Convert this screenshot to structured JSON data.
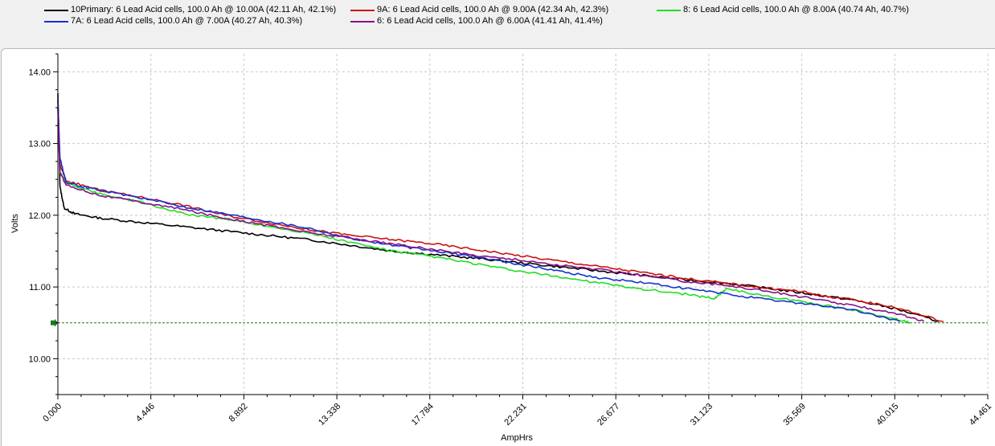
{
  "chart_data": {
    "type": "line",
    "xlabel": "AmpHrs",
    "ylabel": "Volts",
    "xlim": [
      0.0,
      44.461
    ],
    "ylim": [
      9.5,
      14.25
    ],
    "x_ticks": [
      "0.000",
      "4.446",
      "8.892",
      "13.338",
      "17.784",
      "22.231",
      "26.677",
      "31.123",
      "35.569",
      "40.015",
      "44.461"
    ],
    "y_ticks": [
      "10.00",
      "11.00",
      "12.00",
      "13.00",
      "14.00"
    ],
    "threshold": {
      "value": 10.5,
      "color": "#1a7a1a"
    },
    "grid": true,
    "legend_position": "top",
    "series": [
      {
        "name": "10Primary: 6 Lead Acid cells, 100.0 Ah @ 10.00A (42.11 Ah, 42.1%)",
        "color": "#000000",
        "points": [
          [
            0,
            13.7
          ],
          [
            0.1,
            12.4
          ],
          [
            0.3,
            12.1
          ],
          [
            0.8,
            12.02
          ],
          [
            2,
            11.96
          ],
          [
            4,
            11.9
          ],
          [
            6,
            11.84
          ],
          [
            8,
            11.78
          ],
          [
            10,
            11.72
          ],
          [
            12,
            11.66
          ],
          [
            14,
            11.58
          ],
          [
            16,
            11.5
          ],
          [
            18,
            11.45
          ],
          [
            20,
            11.4
          ],
          [
            22,
            11.34
          ],
          [
            24,
            11.28
          ],
          [
            26,
            11.22
          ],
          [
            28,
            11.16
          ],
          [
            30,
            11.1
          ],
          [
            32,
            11.05
          ],
          [
            34,
            10.98
          ],
          [
            36,
            10.9
          ],
          [
            38,
            10.82
          ],
          [
            40,
            10.7
          ],
          [
            42.11,
            10.52
          ]
        ]
      },
      {
        "name": "9A: 6 Lead Acid cells, 100.0 Ah @ 9.00A (42.34 Ah, 42.3%)",
        "color": "#cc1111",
        "points": [
          [
            0,
            13.6
          ],
          [
            0.1,
            12.7
          ],
          [
            0.4,
            12.48
          ],
          [
            2,
            12.35
          ],
          [
            4,
            12.25
          ],
          [
            6,
            12.14
          ],
          [
            8,
            12.0
          ],
          [
            10,
            11.9
          ],
          [
            12,
            11.8
          ],
          [
            14,
            11.72
          ],
          [
            16,
            11.66
          ],
          [
            18,
            11.6
          ],
          [
            20,
            11.52
          ],
          [
            22,
            11.44
          ],
          [
            24,
            11.36
          ],
          [
            26,
            11.28
          ],
          [
            28,
            11.2
          ],
          [
            30,
            11.12
          ],
          [
            32,
            11.05
          ],
          [
            34,
            10.98
          ],
          [
            35.5,
            10.94
          ],
          [
            36.5,
            10.88
          ],
          [
            38,
            10.82
          ],
          [
            40,
            10.72
          ],
          [
            42.34,
            10.52
          ]
        ]
      },
      {
        "name": "8: 6 Lead Acid cells, 100.0 Ah @ 8.00A (40.74 Ah, 40.7%)",
        "color": "#22dd22",
        "points": [
          [
            0,
            13.5
          ],
          [
            0.1,
            12.6
          ],
          [
            0.4,
            12.45
          ],
          [
            2,
            12.3
          ],
          [
            4,
            12.18
          ],
          [
            6,
            12.02
          ],
          [
            8,
            11.95
          ],
          [
            10,
            11.85
          ],
          [
            12,
            11.75
          ],
          [
            14,
            11.62
          ],
          [
            16,
            11.5
          ],
          [
            18,
            11.42
          ],
          [
            20,
            11.32
          ],
          [
            22,
            11.22
          ],
          [
            24,
            11.14
          ],
          [
            26,
            11.05
          ],
          [
            28,
            10.97
          ],
          [
            30,
            10.9
          ],
          [
            31.4,
            10.84
          ],
          [
            32,
            10.98
          ],
          [
            34,
            10.86
          ],
          [
            36,
            10.78
          ],
          [
            38,
            10.68
          ],
          [
            40,
            10.56
          ],
          [
            40.74,
            10.5
          ]
        ]
      },
      {
        "name": "7A: 6 Lead Acid cells, 100.0 Ah @ 7.00A (40.27 Ah, 40.3%)",
        "color": "#1133cc",
        "points": [
          [
            0,
            13.6
          ],
          [
            0.1,
            12.8
          ],
          [
            0.4,
            12.45
          ],
          [
            2,
            12.35
          ],
          [
            4,
            12.24
          ],
          [
            6,
            12.12
          ],
          [
            8,
            12.02
          ],
          [
            10,
            11.92
          ],
          [
            12,
            11.82
          ],
          [
            14,
            11.68
          ],
          [
            16,
            11.58
          ],
          [
            18,
            11.5
          ],
          [
            20,
            11.42
          ],
          [
            22,
            11.32
          ],
          [
            24,
            11.22
          ],
          [
            26,
            11.12
          ],
          [
            28,
            11.06
          ],
          [
            30,
            10.98
          ],
          [
            32,
            10.9
          ],
          [
            34,
            10.82
          ],
          [
            36,
            10.76
          ],
          [
            38,
            10.68
          ],
          [
            40.27,
            10.52
          ]
        ]
      },
      {
        "name": "6: 6 Lead Acid cells, 100.0 Ah @ 6.00A (41.41 Ah, 41.4%)",
        "color": "#881188",
        "points": [
          [
            0,
            13.5
          ],
          [
            0.1,
            12.6
          ],
          [
            0.4,
            12.42
          ],
          [
            2,
            12.28
          ],
          [
            4,
            12.18
          ],
          [
            6,
            12.08
          ],
          [
            8,
            11.96
          ],
          [
            10,
            11.86
          ],
          [
            12,
            11.76
          ],
          [
            14,
            11.68
          ],
          [
            16,
            11.6
          ],
          [
            18,
            11.52
          ],
          [
            20,
            11.44
          ],
          [
            22,
            11.38
          ],
          [
            24,
            11.3
          ],
          [
            26,
            11.24
          ],
          [
            28,
            11.16
          ],
          [
            30,
            11.08
          ],
          [
            32,
            11.02
          ],
          [
            34,
            10.94
          ],
          [
            36,
            10.84
          ],
          [
            38,
            10.74
          ],
          [
            40,
            10.64
          ],
          [
            41.41,
            10.52
          ]
        ]
      }
    ]
  }
}
